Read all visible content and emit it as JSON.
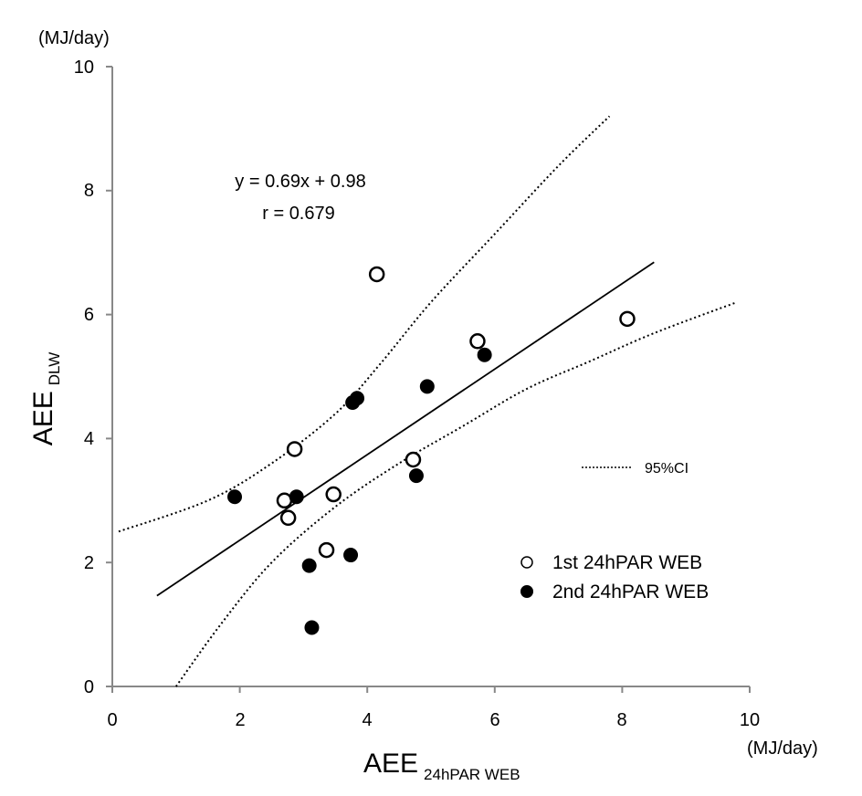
{
  "chart_data": {
    "type": "scatter",
    "x_unit": "(MJ/day)",
    "y_unit": "(MJ/day)",
    "xlabel": {
      "main": "AEE",
      "sub": "24hPAR WEB"
    },
    "ylabel": {
      "main": "AEE",
      "sub": "DLW"
    },
    "xlim": [
      0,
      10
    ],
    "ylim": [
      0,
      10
    ],
    "x_ticks": [
      "0",
      "2",
      "4",
      "6",
      "8",
      "10"
    ],
    "y_ticks": [
      "0",
      "2",
      "4",
      "6",
      "8",
      "10"
    ],
    "grid": false,
    "equation": "y = 0.69x + 0.98",
    "correlation": "r = 0.679",
    "regression": {
      "slope": 0.69,
      "intercept": 0.98,
      "x_range": [
        0.7,
        8.5
      ]
    },
    "ci_label": "95%CI",
    "ci_upper": [
      [
        0.1,
        2.5
      ],
      [
        1.5,
        3.0
      ],
      [
        2.5,
        3.6
      ],
      [
        3.5,
        4.4
      ],
      [
        4.2,
        5.2
      ],
      [
        5.0,
        6.2
      ],
      [
        6.0,
        7.3
      ],
      [
        7.0,
        8.4
      ],
      [
        7.8,
        9.2
      ]
    ],
    "ci_lower": [
      [
        1.0,
        0.0
      ],
      [
        1.7,
        1.0
      ],
      [
        2.5,
        2.0
      ],
      [
        3.5,
        2.9
      ],
      [
        4.5,
        3.6
      ],
      [
        5.5,
        4.2
      ],
      [
        6.5,
        4.8
      ],
      [
        7.5,
        5.25
      ],
      [
        8.5,
        5.7
      ],
      [
        9.8,
        6.2
      ]
    ],
    "series": [
      {
        "name": "1st  24hPAR WEB",
        "marker": "open",
        "points": [
          [
            2.7,
            3.0
          ],
          [
            2.76,
            2.72
          ],
          [
            2.86,
            3.83
          ],
          [
            3.36,
            2.2
          ],
          [
            3.47,
            3.1
          ],
          [
            4.15,
            6.65
          ],
          [
            4.72,
            3.66
          ],
          [
            5.73,
            5.57
          ],
          [
            8.08,
            5.93
          ]
        ]
      },
      {
        "name": "2nd  24hPAR WEB",
        "marker": "filled",
        "points": [
          [
            1.92,
            3.06
          ],
          [
            2.89,
            3.06
          ],
          [
            3.09,
            1.95
          ],
          [
            3.13,
            0.95
          ],
          [
            3.74,
            2.12
          ],
          [
            3.77,
            4.58
          ],
          [
            3.84,
            4.65
          ],
          [
            4.77,
            3.4
          ],
          [
            4.94,
            4.84
          ],
          [
            5.84,
            5.35
          ]
        ]
      }
    ]
  }
}
